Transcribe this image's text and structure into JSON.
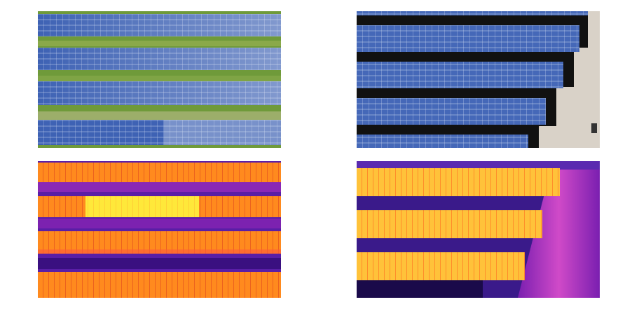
{
  "figure": {
    "panels": [
      {
        "id": "aerial-rgb-left",
        "kind": "visible",
        "rows": 4
      },
      {
        "id": "aerial-rgb-right",
        "kind": "visible",
        "rows": 4
      },
      {
        "id": "thermal-left",
        "kind": "thermal",
        "rows": 4,
        "hotspot_row": 2
      },
      {
        "id": "thermal-right",
        "kind": "thermal",
        "rows": 3
      }
    ],
    "colors": {
      "panel_blue": "#3b5fb0",
      "panel_blue_light": "#6d8fd4",
      "grass": "#6f9a3a",
      "shadow": "#111111",
      "soil": "#d8c7b2",
      "thermal_bg": "#4a1a9a",
      "thermal_warm": "#ff7a1a",
      "thermal_hot": "#ffe23a",
      "thermal_cool": "#7a1fb0"
    }
  }
}
